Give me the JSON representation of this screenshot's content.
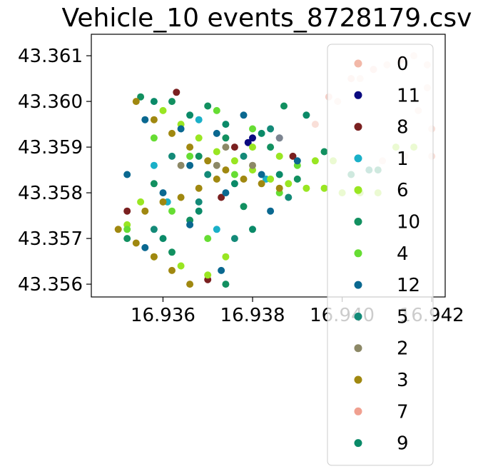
{
  "chart_data": {
    "type": "scatter",
    "title": "Vehicle_10 events_8728179.csv",
    "xlabel": "",
    "ylabel": "",
    "xlim": [
      16.9344,
      16.9423
    ],
    "ylim": [
      43.35572,
      43.36147
    ],
    "x_ticks": [
      {
        "value": 16.936,
        "label": "16.936"
      },
      {
        "value": 16.938,
        "label": "16.938"
      },
      {
        "value": 16.94,
        "label": "16.940"
      },
      {
        "value": 16.942,
        "label": "16.942"
      }
    ],
    "y_ticks": [
      {
        "value": 43.356,
        "label": "43.356"
      },
      {
        "value": 43.357,
        "label": "43.357"
      },
      {
        "value": 43.358,
        "label": "43.358"
      },
      {
        "value": 43.359,
        "label": "43.359"
      },
      {
        "value": 43.36,
        "label": "43.360"
      },
      {
        "value": 43.361,
        "label": "43.361"
      }
    ],
    "grid": false,
    "legend_position": "right",
    "series": [
      {
        "name": "0",
        "color": "#f2b8a8",
        "alpha": 0.45,
        "points": [
          [
            16.9394,
            43.3595
          ],
          [
            16.9399,
            43.36
          ],
          [
            16.9404,
            43.3605
          ],
          [
            16.941,
            43.3608
          ],
          [
            16.9416,
            43.361
          ],
          [
            16.9419,
            43.3608
          ],
          [
            16.9419,
            43.3603
          ],
          [
            16.9417,
            43.3598
          ],
          [
            16.942,
            43.3594
          ],
          [
            16.9424,
            43.3591
          ],
          [
            16.942,
            43.3588
          ],
          [
            16.9414,
            43.3588
          ],
          [
            16.9409,
            43.3587
          ]
        ]
      },
      {
        "name": "11",
        "color": "#0a0a80",
        "alpha": 1,
        "points": [
          [
            16.938,
            43.3592
          ],
          [
            16.9379,
            43.3591
          ]
        ]
      },
      {
        "name": "8",
        "color": "#7a2020",
        "alpha": 1,
        "points": [
          [
            16.9352,
            43.3576
          ],
          [
            16.9363,
            43.3602
          ],
          [
            16.9376,
            43.359
          ],
          [
            16.9389,
            43.3588
          ],
          [
            16.937,
            43.3561
          ],
          [
            16.9373,
            43.3579
          ]
        ]
      },
      {
        "name": "1",
        "color": "#1ab0c8",
        "alpha": 1,
        "points": [
          [
            16.9358,
            43.3586
          ],
          [
            16.9368,
            43.3596
          ],
          [
            16.9383,
            43.3583
          ],
          [
            16.9372,
            43.3572
          ],
          [
            16.9361,
            43.3578
          ]
        ]
      },
      {
        "name": "6",
        "color": "#99e622",
        "alpha": 1,
        "points": [
          [
            16.936,
            43.3598
          ],
          [
            16.9364,
            43.3595
          ],
          [
            16.9368,
            43.3592
          ],
          [
            16.9372,
            43.3589
          ],
          [
            16.9376,
            43.3587
          ],
          [
            16.938,
            43.3585
          ],
          [
            16.9384,
            43.3583
          ],
          [
            16.9388,
            43.3582
          ],
          [
            16.9392,
            43.3581
          ],
          [
            16.9396,
            43.3581
          ],
          [
            16.94,
            43.358
          ],
          [
            16.9404,
            43.358
          ],
          [
            16.9408,
            43.358
          ],
          [
            16.9412,
            43.359
          ],
          [
            16.9416,
            43.359
          ],
          [
            16.9355,
            43.3578
          ],
          [
            16.9352,
            43.3573
          ],
          [
            16.9358,
            43.3566
          ],
          [
            16.9364,
            43.3564
          ],
          [
            16.937,
            43.3562
          ],
          [
            16.9374,
            43.3566
          ],
          [
            16.938,
            43.359
          ],
          [
            16.9386,
            43.3588
          ],
          [
            16.9394,
            43.3587
          ],
          [
            16.9398,
            43.3587
          ]
        ]
      },
      {
        "name": "10",
        "color": "#129060",
        "alpha": 1,
        "points": [
          [
            16.9355,
            43.3601
          ],
          [
            16.9362,
            43.36
          ],
          [
            16.937,
            43.3599
          ],
          [
            16.9374,
            43.3592
          ],
          [
            16.9384,
            43.359
          ],
          [
            16.939,
            43.3583
          ],
          [
            16.9378,
            43.3577
          ],
          [
            16.9366,
            43.3574
          ],
          [
            16.9358,
            43.3582
          ],
          [
            16.9352,
            43.357
          ],
          [
            16.9362,
            43.3567
          ],
          [
            16.9374,
            43.356
          ],
          [
            16.9368,
            43.3588
          ],
          [
            16.9387,
            43.3599
          ],
          [
            16.9408,
            43.3585
          ],
          [
            16.9402,
            43.3584
          ],
          [
            16.9396,
            43.3589
          ]
        ]
      },
      {
        "name": "4",
        "color": "#66dd33",
        "alpha": 1,
        "points": [
          [
            16.9358,
            43.3592
          ],
          [
            16.9366,
            43.3588
          ],
          [
            16.9376,
            43.3584
          ],
          [
            16.9386,
            43.358
          ],
          [
            16.937,
            43.357
          ],
          [
            16.9362,
            43.3576
          ],
          [
            16.9352,
            43.3572
          ],
          [
            16.938,
            43.3594
          ],
          [
            16.939,
            43.3586
          ],
          [
            16.9372,
            43.3598
          ]
        ]
      },
      {
        "name": "12",
        "color": "#0a6890",
        "alpha": 1,
        "points": [
          [
            16.9356,
            43.3596
          ],
          [
            16.9364,
            43.3594
          ],
          [
            16.9372,
            43.3593
          ],
          [
            16.9366,
            43.3586
          ],
          [
            16.9374,
            43.358
          ],
          [
            16.9382,
            43.3584
          ],
          [
            16.939,
            43.3587
          ],
          [
            16.936,
            43.358
          ],
          [
            16.9352,
            43.3584
          ],
          [
            16.9356,
            43.3568
          ],
          [
            16.9366,
            43.3573
          ],
          [
            16.9373,
            43.3563
          ],
          [
            16.9384,
            43.3576
          ],
          [
            16.9378,
            43.3597
          ],
          [
            16.9386,
            43.3592
          ]
        ]
      },
      {
        "name": "5",
        "color": "#138a78",
        "alpha": 1,
        "points": [
          [
            16.9362,
            43.3588
          ],
          [
            16.937,
            43.3584
          ],
          [
            16.9378,
            43.3588
          ],
          [
            16.9384,
            43.3594
          ],
          [
            16.9368,
            43.3578
          ],
          [
            16.9358,
            43.3572
          ],
          [
            16.9376,
            43.357
          ],
          [
            16.9388,
            43.3579
          ]
        ]
      },
      {
        "name": "2",
        "color": "#8c8866",
        "alpha": 1,
        "points": [
          [
            16.9364,
            43.3586
          ],
          [
            16.9372,
            43.3586
          ],
          [
            16.938,
            43.3586
          ],
          [
            16.9374,
            43.359
          ]
        ]
      },
      {
        "name": "3",
        "color": "#a08810",
        "alpha": 1,
        "points": [
          [
            16.9354,
            43.36
          ],
          [
            16.9358,
            43.3596
          ],
          [
            16.9362,
            43.3593
          ],
          [
            16.9366,
            43.359
          ],
          [
            16.937,
            43.3587
          ],
          [
            16.9374,
            43.3585
          ],
          [
            16.9378,
            43.3583
          ],
          [
            16.9382,
            43.3582
          ],
          [
            16.9386,
            43.3581
          ],
          [
            16.935,
            43.3572
          ],
          [
            16.9354,
            43.3569
          ],
          [
            16.9358,
            43.3566
          ],
          [
            16.9362,
            43.3563
          ],
          [
            16.9366,
            43.356
          ],
          [
            16.9364,
            43.3579
          ],
          [
            16.9368,
            43.3581
          ],
          [
            16.9372,
            43.3583
          ],
          [
            16.9356,
            43.3576
          ],
          [
            16.936,
            43.3578
          ]
        ]
      },
      {
        "name": "7",
        "color": "#f0a090",
        "alpha": 0.5,
        "points": [
          [
            16.9386,
            43.3592
          ],
          [
            16.9392,
            43.3597
          ],
          [
            16.9397,
            43.3601
          ],
          [
            16.9402,
            43.3605
          ],
          [
            16.9407,
            43.3607
          ],
          [
            16.9413,
            43.3609
          ]
        ]
      },
      {
        "name": "9",
        "color": "#0a8a68",
        "alpha": 1,
        "points": [
          [
            16.9358,
            43.36
          ],
          [
            16.9366,
            43.3597
          ],
          [
            16.9374,
            43.3595
          ],
          [
            16.9382,
            43.3593
          ],
          [
            16.9376,
            43.3582
          ],
          [
            16.9368,
            43.3576
          ],
          [
            16.936,
            43.357
          ],
          [
            16.938,
            43.3572
          ],
          [
            16.9386,
            43.3584
          ],
          [
            16.9392,
            43.3597
          ],
          [
            16.9406,
            43.3585
          ]
        ]
      }
    ]
  }
}
